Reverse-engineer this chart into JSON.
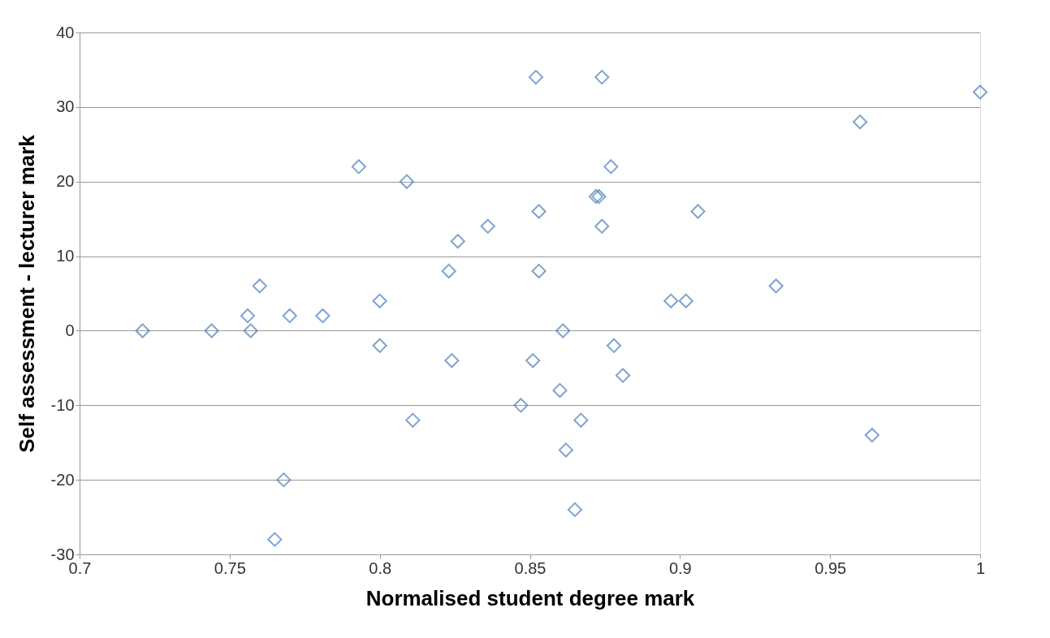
{
  "chart_data": {
    "type": "scatter",
    "xlabel": "Normalised student degree mark",
    "ylabel": "Self assessment - lecturer mark",
    "x": [
      0.721,
      0.744,
      0.756,
      0.757,
      0.76,
      0.77,
      0.781,
      0.793,
      0.8,
      0.8,
      0.809,
      0.811,
      0.823,
      0.826,
      0.836,
      0.824,
      0.847,
      0.851,
      0.852,
      0.853,
      0.853,
      0.861,
      0.86,
      0.862,
      0.867,
      0.865,
      0.874,
      0.872,
      0.873,
      0.874,
      0.877,
      0.878,
      0.881,
      0.897,
      0.902,
      0.906,
      0.932,
      0.96,
      0.964,
      1.0,
      0.768,
      0.765
    ],
    "series": [
      {
        "color": "#4a7ebb",
        "values": [
          0,
          0,
          2,
          0,
          6,
          2,
          2,
          22,
          4,
          -2,
          20,
          -12,
          8,
          12,
          14,
          -4,
          -10,
          -4,
          34,
          16,
          8,
          0,
          -8,
          -16,
          -12,
          -24,
          34,
          18,
          18,
          14,
          22,
          -2,
          -6,
          4,
          4,
          16,
          6,
          28,
          -14,
          32,
          -20,
          -28
        ]
      }
    ],
    "xlim": [
      0.7,
      1.0
    ],
    "xticks": [
      0.7,
      0.75,
      0.8,
      0.85,
      0.9,
      0.95,
      1
    ],
    "ylim": [
      -30,
      40
    ],
    "yticks": [
      -30,
      -20,
      -10,
      0,
      10,
      20,
      30,
      40
    ],
    "grid": "y",
    "marker": "diamond"
  }
}
